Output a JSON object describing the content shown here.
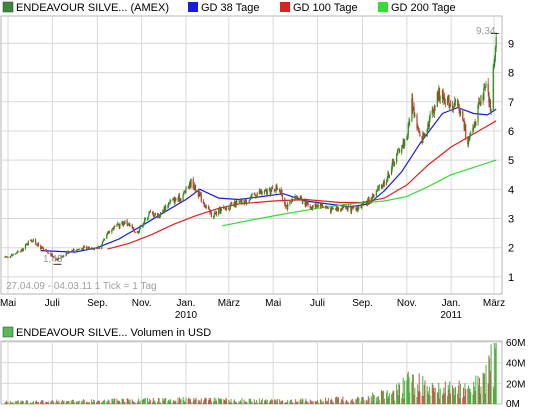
{
  "legend": {
    "price": "ENDEAVOUR SILVE... (AMEX)",
    "ma38": "GD 38 Tage",
    "ma100": "GD 100 Tage",
    "ma200": "GD 200 Tage",
    "volume": "ENDEAVOUR SILVE... Volumen in USD"
  },
  "footnote": "27.04.09 - 04.03.11   1 Tick = 1 Tag",
  "annotations": {
    "max": "9,34",
    "min": "1,43"
  },
  "colors": {
    "candle_up": "#2e8b1e",
    "candle_down": "#c0392b",
    "ma38": "#1a1ae6",
    "ma100": "#e02020",
    "ma200": "#33dd33",
    "vol_up": "#4caf3f",
    "vol_down": "#d05050",
    "legend_price": "#3a8a3a",
    "legend_vol": "#55bb55",
    "grid": "#d8d8d8"
  },
  "chart_data": [
    {
      "type": "candlestick",
      "title": "",
      "x_ticks": [
        "Mai",
        "Juli",
        "Sep.",
        "Nov.",
        "Jan.",
        "März",
        "Mai",
        "Juli",
        "Sep.",
        "Nov.",
        "Jan.",
        "März"
      ],
      "x_year_labels": [
        {
          "tick": 4,
          "label": "2010"
        },
        {
          "tick": 10,
          "label": "2011"
        }
      ],
      "y_ticks": [
        1,
        2,
        3,
        4,
        5,
        6,
        7,
        8,
        9
      ],
      "ylim": [
        0.4,
        9.8
      ],
      "x_range": [
        "2009-04-27",
        "2011-03-04"
      ],
      "grid": true,
      "legend_position": "top",
      "close_anchors": [
        [
          "2009-04-27",
          1.65
        ],
        [
          "2009-05-20",
          1.9
        ],
        [
          "2009-06-01",
          2.3
        ],
        [
          "2009-06-20",
          1.9
        ],
        [
          "2009-07-08",
          1.6
        ],
        [
          "2009-07-25",
          1.9
        ],
        [
          "2009-08-15",
          2.0
        ],
        [
          "2009-09-05",
          2.0
        ],
        [
          "2009-09-18",
          2.6
        ],
        [
          "2009-10-10",
          2.9
        ],
        [
          "2009-10-25",
          2.5
        ],
        [
          "2009-11-12",
          3.2
        ],
        [
          "2009-11-25",
          3.1
        ],
        [
          "2009-12-10",
          3.6
        ],
        [
          "2009-12-25",
          3.7
        ],
        [
          "2010-01-08",
          4.25
        ],
        [
          "2010-01-22",
          3.7
        ],
        [
          "2010-02-05",
          3.1
        ],
        [
          "2010-02-20",
          3.3
        ],
        [
          "2010-03-10",
          3.5
        ],
        [
          "2010-03-25",
          3.6
        ],
        [
          "2010-04-10",
          3.9
        ],
        [
          "2010-04-25",
          3.9
        ],
        [
          "2010-05-08",
          4.1
        ],
        [
          "2010-05-20",
          3.4
        ],
        [
          "2010-06-05",
          3.8
        ],
        [
          "2010-06-20",
          3.4
        ],
        [
          "2010-07-05",
          3.5
        ],
        [
          "2010-07-20",
          3.3
        ],
        [
          "2010-08-05",
          3.4
        ],
        [
          "2010-08-20",
          3.3
        ],
        [
          "2010-09-05",
          3.5
        ],
        [
          "2010-09-20",
          3.9
        ],
        [
          "2010-10-05",
          4.4
        ],
        [
          "2010-10-20",
          5.3
        ],
        [
          "2010-11-01",
          5.8
        ],
        [
          "2010-11-08",
          7.0
        ],
        [
          "2010-11-20",
          5.6
        ],
        [
          "2010-12-05",
          6.6
        ],
        [
          "2010-12-15",
          7.3
        ],
        [
          "2010-12-30",
          7.0
        ],
        [
          "2011-01-12",
          6.8
        ],
        [
          "2011-01-25",
          5.6
        ],
        [
          "2011-02-08",
          6.8
        ],
        [
          "2011-02-18",
          7.5
        ],
        [
          "2011-02-25",
          6.7
        ],
        [
          "2011-03-01",
          8.5
        ],
        [
          "2011-03-04",
          9.2
        ]
      ],
      "series": [
        {
          "name": "GD 38 Tage",
          "points": [
            [
              "2009-06-15",
              1.9
            ],
            [
              "2009-08-01",
              1.85
            ],
            [
              "2009-09-01",
              2.0
            ],
            [
              "2009-10-01",
              2.3
            ],
            [
              "2009-11-01",
              2.75
            ],
            [
              "2009-12-01",
              3.2
            ],
            [
              "2010-01-01",
              3.65
            ],
            [
              "2010-01-20",
              4.0
            ],
            [
              "2010-02-15",
              3.7
            ],
            [
              "2010-03-15",
              3.65
            ],
            [
              "2010-04-15",
              3.75
            ],
            [
              "2010-05-15",
              3.85
            ],
            [
              "2010-06-15",
              3.6
            ],
            [
              "2010-07-15",
              3.5
            ],
            [
              "2010-08-15",
              3.4
            ],
            [
              "2010-09-10",
              3.5
            ],
            [
              "2010-10-01",
              3.95
            ],
            [
              "2010-10-25",
              4.6
            ],
            [
              "2010-11-20",
              5.6
            ],
            [
              "2010-12-20",
              6.6
            ],
            [
              "2011-01-10",
              6.8
            ],
            [
              "2011-02-01",
              6.6
            ],
            [
              "2011-02-20",
              6.55
            ],
            [
              "2011-03-04",
              6.75
            ]
          ]
        },
        {
          "name": "GD 100 Tage",
          "points": [
            [
              "2009-09-15",
              1.95
            ],
            [
              "2009-10-15",
              2.15
            ],
            [
              "2009-11-15",
              2.45
            ],
            [
              "2009-12-15",
              2.8
            ],
            [
              "2010-01-15",
              3.1
            ],
            [
              "2010-02-15",
              3.35
            ],
            [
              "2010-03-15",
              3.5
            ],
            [
              "2010-05-01",
              3.6
            ],
            [
              "2010-06-15",
              3.65
            ],
            [
              "2010-08-01",
              3.55
            ],
            [
              "2010-09-01",
              3.55
            ],
            [
              "2010-10-01",
              3.7
            ],
            [
              "2010-11-01",
              4.15
            ],
            [
              "2010-12-01",
              4.85
            ],
            [
              "2011-01-01",
              5.45
            ],
            [
              "2011-02-01",
              5.9
            ],
            [
              "2011-03-04",
              6.35
            ]
          ]
        },
        {
          "name": "GD 200 Tage",
          "points": [
            [
              "2010-02-20",
              2.75
            ],
            [
              "2010-04-01",
              2.95
            ],
            [
              "2010-05-15",
              3.15
            ],
            [
              "2010-07-01",
              3.35
            ],
            [
              "2010-08-15",
              3.5
            ],
            [
              "2010-10-01",
              3.6
            ],
            [
              "2010-11-01",
              3.75
            ],
            [
              "2010-12-01",
              4.1
            ],
            [
              "2011-01-01",
              4.5
            ],
            [
              "2011-02-01",
              4.75
            ],
            [
              "2011-03-04",
              5.0
            ]
          ]
        }
      ]
    },
    {
      "type": "bar",
      "title": "",
      "ylabel": "",
      "y_ticks": [
        "0M",
        "20M",
        "40M",
        "60M"
      ],
      "ylim": [
        0,
        60
      ],
      "unit": "M USD",
      "volume_anchors": [
        [
          "2009-04-27",
          2
        ],
        [
          "2009-09-01",
          3
        ],
        [
          "2010-01-01",
          4
        ],
        [
          "2010-06-01",
          3
        ],
        [
          "2010-09-01",
          5
        ],
        [
          "2010-10-15",
          10
        ],
        [
          "2010-11-08",
          24
        ],
        [
          "2010-12-01",
          12
        ],
        [
          "2011-01-15",
          14
        ],
        [
          "2011-02-15",
          18
        ],
        [
          "2011-03-04",
          50
        ]
      ]
    }
  ]
}
